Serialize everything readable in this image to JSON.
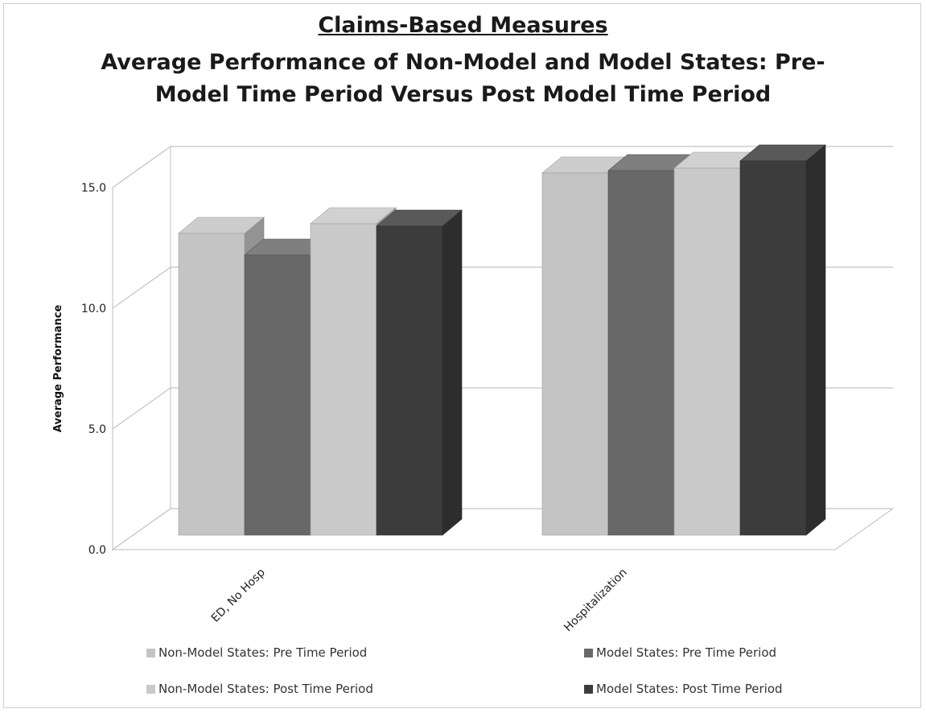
{
  "title": {
    "line1": "Claims-Based Measures",
    "line2": "Average Performance of Non-Model and Model States: Pre-",
    "line3": "Model Time Period Versus Post Model Time Period"
  },
  "chart_data": {
    "type": "bar",
    "title": "Claims-Based Measures Average Performance of Non-Model and Model States: Pre-Model Time Period Versus Post Model Time Period",
    "xlabel": "",
    "ylabel": "Average Performance",
    "ylim": [
      0,
      15
    ],
    "yticks": [
      "0.0",
      "5.0",
      "10.0",
      "15.0"
    ],
    "grid": true,
    "legend_position": "bottom",
    "categories": [
      "ED, No Hosp",
      "Hospitalization"
    ],
    "series": [
      {
        "name": "Non-Model States: Pre Time Period",
        "values": [
          12.5,
          15.0
        ],
        "color": "#c4c4c4"
      },
      {
        "name": "Model States: Pre Time Period",
        "values": [
          11.6,
          15.1
        ],
        "color": "#686868"
      },
      {
        "name": "Non-Model States: Post Time Period",
        "values": [
          12.9,
          15.2
        ],
        "color": "#c9c9c9"
      },
      {
        "name": "Model States: Post Time Period",
        "values": [
          12.8,
          15.5
        ],
        "color": "#3c3c3c"
      }
    ]
  }
}
